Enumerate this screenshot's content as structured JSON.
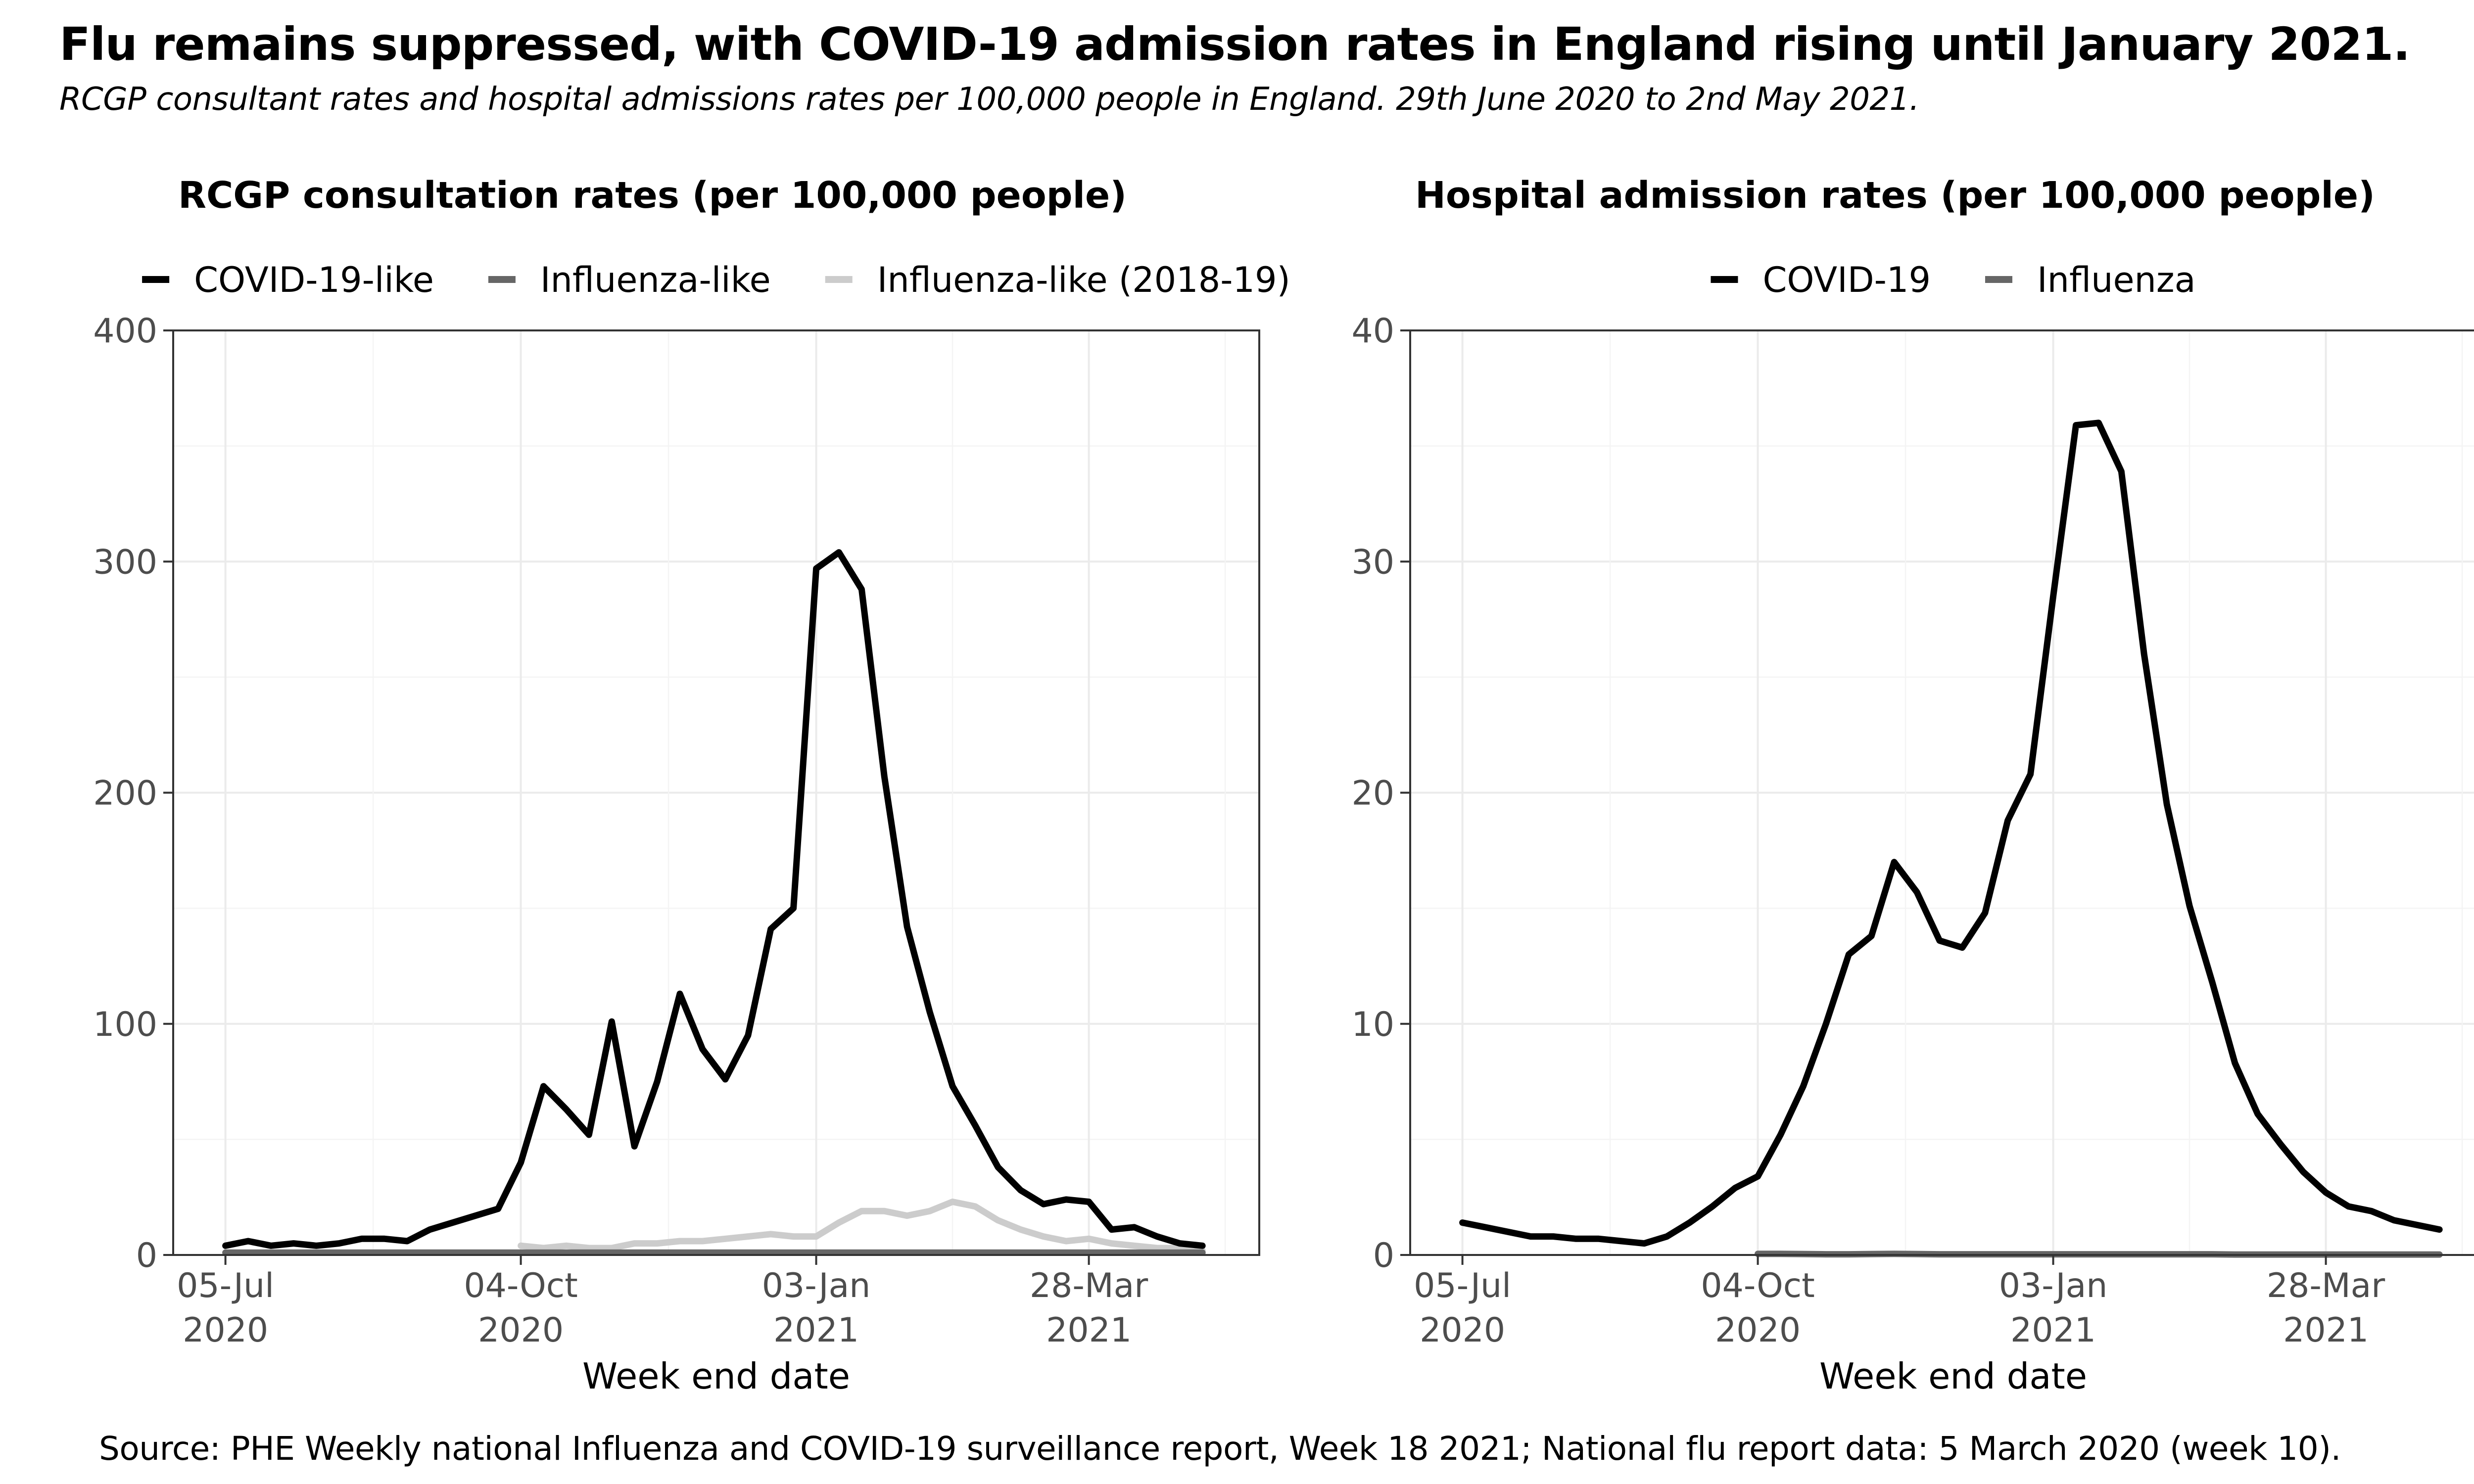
{
  "title": "Flu remains suppressed, with COVID-19 admission rates in England rising until January 2021.",
  "subtitle": "RCGP consultant rates and hospital admissions rates per 100,000 people in England. 29th June 2020 to 2nd May 2021.",
  "source": "Source: PHE Weekly national Influenza and COVID-19 surveillance report, Week 18 2021; National flu report data: 5 March 2020 (week 10).",
  "chart_data": [
    {
      "type": "line",
      "title": "RCGP consultation rates (per 100,000 people)",
      "xlabel": "Week end date",
      "ylabel": "",
      "ylim": [
        0,
        400
      ],
      "yticks": [
        0,
        100,
        200,
        300,
        400
      ],
      "ytick_labels": [
        "0",
        "100",
        "200",
        "300",
        "400"
      ],
      "xlim": [
        -2.3,
        45.5
      ],
      "xticks": [
        0,
        13,
        26,
        38
      ],
      "xtick_labels": [
        [
          "05-Jul",
          "2020"
        ],
        [
          "04-Oct",
          "2020"
        ],
        [
          "03-Jan",
          "2021"
        ],
        [
          "28-Mar",
          "2021"
        ]
      ],
      "x_unit": "weeks from 05-Jul 2020",
      "legend_position": "top",
      "series": [
        {
          "name": "COVID-19-like",
          "color": "#000000",
          "x": [
            0,
            1,
            2,
            3,
            4,
            5,
            6,
            7,
            8,
            9,
            10,
            11,
            12,
            13,
            14,
            15,
            16,
            17,
            18,
            19,
            20,
            21,
            22,
            23,
            24,
            25,
            26,
            27,
            28,
            29,
            30,
            31,
            32,
            33,
            34,
            35,
            36,
            37,
            38,
            39,
            40,
            41,
            42,
            43
          ],
          "values": [
            4,
            6,
            4,
            5,
            4,
            5,
            7,
            7,
            6,
            11,
            14,
            17,
            20,
            40,
            73,
            63,
            52,
            101,
            47,
            75,
            113,
            89,
            76,
            95,
            141,
            150,
            297,
            304,
            288,
            207,
            142,
            105,
            73,
            56,
            38,
            28,
            22,
            24,
            23,
            11,
            12,
            8,
            5,
            4
          ]
        },
        {
          "name": "Influenza-like",
          "color": "#666666",
          "x": [
            0,
            1,
            2,
            3,
            4,
            5,
            6,
            7,
            8,
            9,
            10,
            11,
            12,
            13,
            14,
            15,
            16,
            17,
            18,
            19,
            20,
            21,
            22,
            23,
            24,
            25,
            26,
            27,
            28,
            29,
            30,
            31,
            32,
            33,
            34,
            35,
            36,
            37,
            38,
            39,
            40,
            41,
            42,
            43
          ],
          "values": [
            1,
            1,
            1,
            1,
            1,
            1,
            1,
            1,
            1,
            1,
            1,
            1,
            1,
            1,
            1,
            1,
            1,
            1,
            1,
            1,
            1,
            1,
            1,
            1,
            1,
            1,
            1,
            1,
            1,
            1,
            1,
            1,
            1,
            1,
            1,
            1,
            1,
            1,
            1,
            1,
            1,
            1,
            1,
            1
          ]
        },
        {
          "name": "Influenza-like (2018-19)",
          "color": "#cccccc",
          "x": [
            13,
            14,
            15,
            16,
            17,
            18,
            19,
            20,
            21,
            22,
            23,
            24,
            25,
            26,
            27,
            28,
            29,
            30,
            31,
            32,
            33,
            34,
            35,
            36,
            37,
            38,
            39,
            40,
            41,
            42,
            43
          ],
          "values": [
            4,
            3,
            4,
            3,
            3,
            5,
            5,
            6,
            6,
            7,
            8,
            9,
            8,
            8,
            14,
            19,
            19,
            17,
            19,
            23,
            21,
            15,
            11,
            8,
            6,
            7,
            5,
            4,
            3,
            3,
            2
          ]
        }
      ]
    },
    {
      "type": "line",
      "title": "Hospital admission rates (per 100,000 people)",
      "xlabel": "Week end date",
      "ylabel": "",
      "ylim": [
        0,
        40
      ],
      "yticks": [
        0,
        10,
        20,
        30,
        40
      ],
      "ytick_labels": [
        "0",
        "10",
        "20",
        "30",
        "40"
      ],
      "xlim": [
        -2.3,
        45.5
      ],
      "xticks": [
        0,
        13,
        26,
        38
      ],
      "xtick_labels": [
        [
          "05-Jul",
          "2020"
        ],
        [
          "04-Oct",
          "2020"
        ],
        [
          "03-Jan",
          "2021"
        ],
        [
          "28-Mar",
          "2021"
        ]
      ],
      "x_unit": "weeks from 05-Jul 2020",
      "legend_position": "top",
      "series": [
        {
          "name": "COVID-19",
          "color": "#000000",
          "x": [
            0,
            1,
            2,
            3,
            4,
            5,
            6,
            7,
            8,
            9,
            10,
            11,
            12,
            13,
            14,
            15,
            16,
            17,
            18,
            19,
            20,
            21,
            22,
            23,
            24,
            25,
            26,
            27,
            28,
            29,
            30,
            31,
            32,
            33,
            34,
            35,
            36,
            37,
            38,
            39,
            40,
            41,
            42,
            43
          ],
          "values": [
            1.4,
            1.2,
            1.0,
            0.8,
            0.8,
            0.7,
            0.7,
            0.6,
            0.5,
            0.8,
            1.4,
            2.1,
            2.9,
            3.4,
            5.2,
            7.3,
            10.0,
            13.0,
            13.8,
            17.0,
            15.7,
            13.6,
            13.3,
            14.8,
            18.8,
            20.8,
            28.5,
            35.9,
            36.0,
            33.9,
            26.0,
            19.5,
            15.1,
            11.8,
            8.3,
            6.1,
            4.8,
            3.6,
            2.7,
            2.1,
            1.9,
            1.5,
            1.3,
            1.1
          ]
        },
        {
          "name": "Influenza",
          "color": "#666666",
          "x": [
            13,
            14,
            15,
            16,
            17,
            18,
            19,
            20,
            21,
            22,
            23,
            24,
            25,
            26,
            27,
            28,
            29,
            30,
            31,
            32,
            33,
            34,
            35,
            36,
            37,
            38,
            39,
            40,
            41,
            42,
            43
          ],
          "values": [
            0.05,
            0.05,
            0.04,
            0.03,
            0.03,
            0.04,
            0.05,
            0.04,
            0.03,
            0.03,
            0.03,
            0.03,
            0.03,
            0.03,
            0.03,
            0.03,
            0.03,
            0.03,
            0.03,
            0.03,
            0.03,
            0.02,
            0.02,
            0.02,
            0.02,
            0.02,
            0.02,
            0.02,
            0.02,
            0.02,
            0.02
          ]
        }
      ]
    }
  ]
}
